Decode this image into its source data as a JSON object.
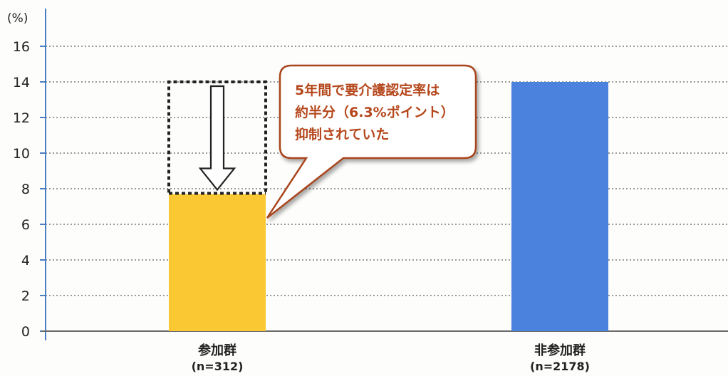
{
  "chart_data": {
    "type": "bar",
    "ylabel": "(%)",
    "ylim": [
      0,
      17.6
    ],
    "yticks": [
      0,
      2,
      4,
      6,
      8,
      10,
      12,
      14,
      16
    ],
    "grid": true,
    "categories": [
      "参加群",
      "非参加群"
    ],
    "category_notes": [
      "(n=312)",
      "(n=2178)"
    ],
    "values": [
      7.7,
      14.0
    ],
    "colors": [
      "#f9c832",
      "#4a82de"
    ],
    "annotation": {
      "lines": [
        "5年間で要介護認定率は",
        "約半分（6.3%ポイント）",
        "抑制されていた"
      ],
      "difference": 6.3
    }
  }
}
